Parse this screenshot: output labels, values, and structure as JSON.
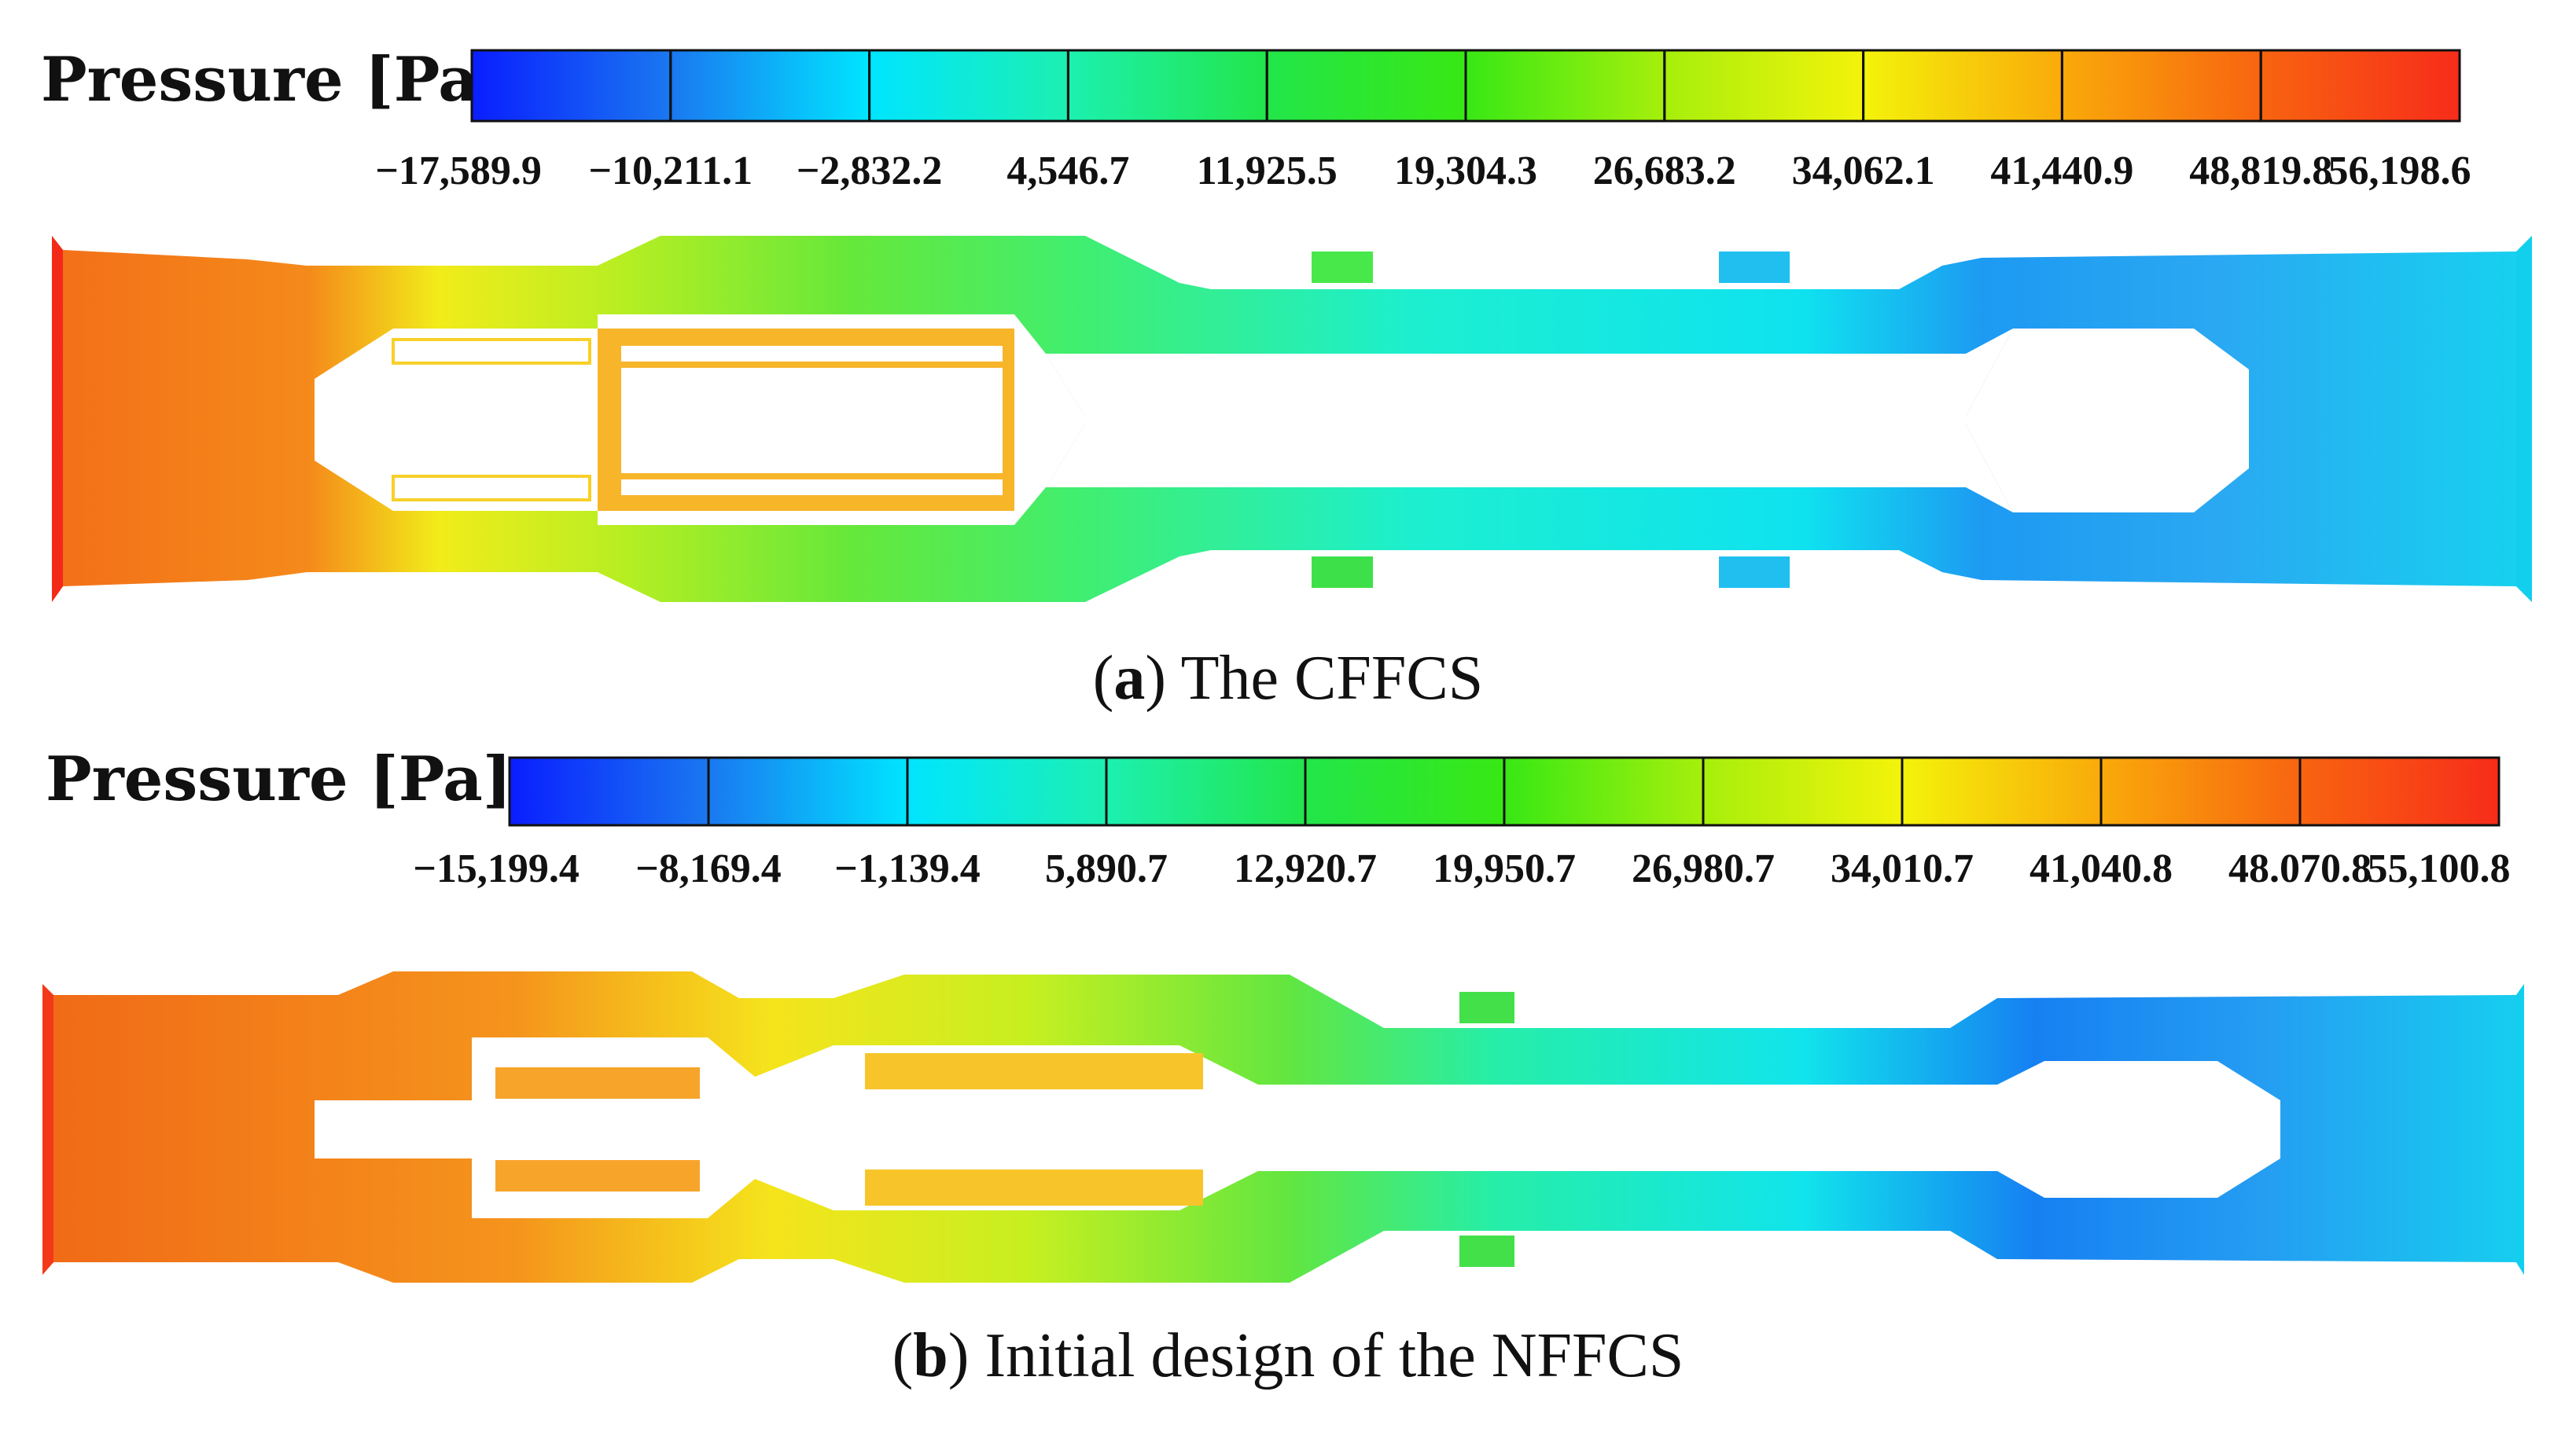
{
  "panels": [
    {
      "id": "a",
      "colorbar_title": "Pressure [Pa]",
      "ticks": [
        "−17,589.9",
        "−10,211.1",
        "−2,832.2",
        "4,546.7",
        "11,925.5",
        "19,304.3",
        "26,683.2",
        "34,062.1",
        "41,440.9",
        "48,819.8",
        "56,198.6"
      ],
      "tick_values": [
        -17589.9,
        -10211.1,
        -2832.2,
        4546.7,
        11925.5,
        19304.3,
        26683.2,
        34062.1,
        41440.9,
        48819.8,
        56198.6
      ],
      "caption_letter": "a",
      "caption_text": "The CFFCS"
    },
    {
      "id": "b",
      "colorbar_title": "Pressure [Pa]",
      "ticks": [
        "−15,199.4",
        "−8,169.4",
        "−1,139.4",
        "5,890.7",
        "12,920.7",
        "19,950.7",
        "26,980.7",
        "34,010.7",
        "41,040.8",
        "48.070.8",
        "55,100.8"
      ],
      "tick_values": [
        -15199.4,
        -8169.4,
        -1139.4,
        5890.7,
        12920.7,
        19950.7,
        26980.7,
        34010.7,
        41040.8,
        48070.8,
        55100.8
      ],
      "caption_letter": "b",
      "caption_text": "Initial design of the NFFCS"
    }
  ],
  "colors": {
    "colormap": [
      "#0a1eff",
      "#1a78f0",
      "#00e5ff",
      "#1cf0b0",
      "#22e64a",
      "#38e814",
      "#a6ef0c",
      "#f4f30a",
      "#f9aa0a",
      "#f86410",
      "#f72c1a"
    ],
    "inlet": "#f47319",
    "outlet": "#12c9e4",
    "band_border": "#111111"
  }
}
